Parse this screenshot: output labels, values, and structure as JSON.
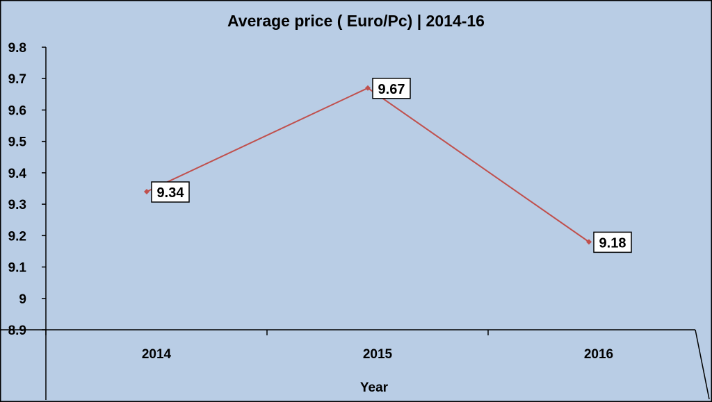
{
  "chart_data": {
    "type": "line",
    "title": "Average price ( Euro/Pc)  | 2014-16",
    "xlabel": "Year",
    "ylabel": "",
    "categories": [
      "2014",
      "2015",
      "2016"
    ],
    "series": [
      {
        "values": [
          9.34,
          9.67,
          9.18
        ],
        "labels": [
          "9.34",
          "9.67",
          "9.18"
        ]
      }
    ],
    "ylim": [
      8.9,
      9.8
    ],
    "yticks": [
      "8.9",
      "9",
      "9.1",
      "9.2",
      "9.3",
      "9.4",
      "9.5",
      "9.6",
      "9.7",
      "9.8"
    ],
    "grid": false,
    "legend": "none",
    "colors": {
      "background": "#b9cde5",
      "line": "#c0504d",
      "label_box": "#ffffff"
    }
  }
}
